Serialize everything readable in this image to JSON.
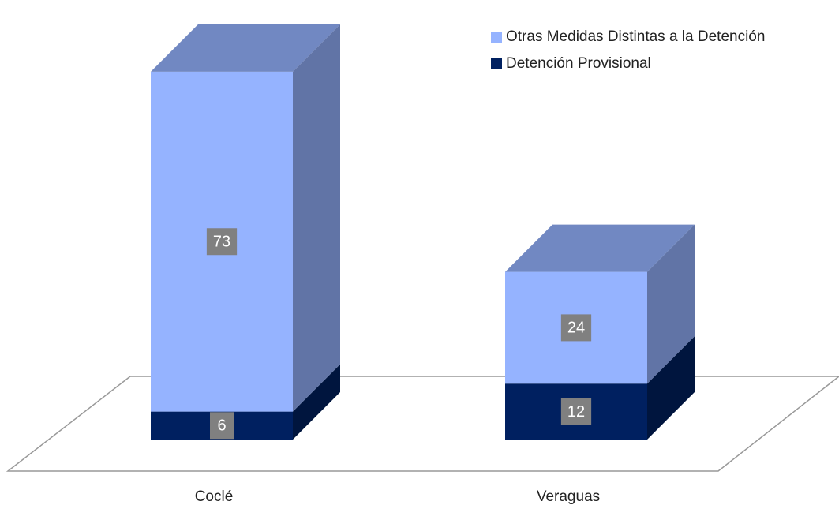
{
  "chart_data": {
    "type": "bar3d_stacked",
    "categories": [
      "Coclé",
      "Veraguas"
    ],
    "series": [
      {
        "name": "Detención Provisional",
        "color": "#002060",
        "values": [
          6,
          12
        ]
      },
      {
        "name": "Otras Medidas Distintas a la Detención",
        "color": "#95b3ff",
        "values": [
          73,
          24
        ]
      }
    ],
    "legend": "top-right"
  }
}
